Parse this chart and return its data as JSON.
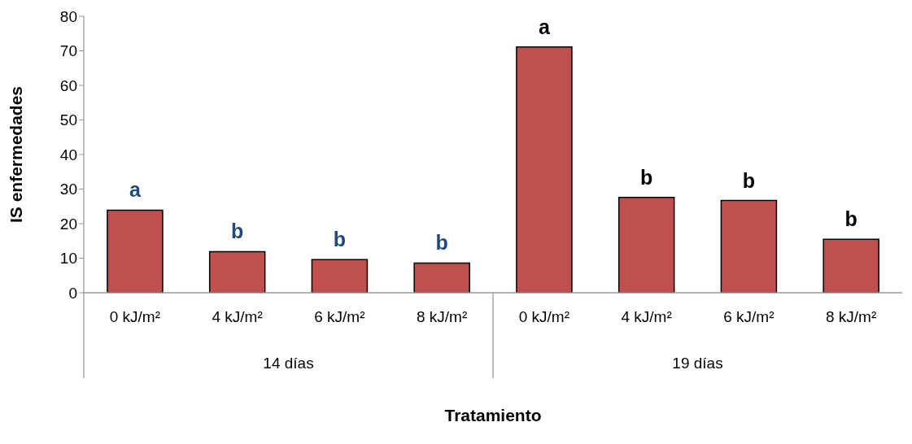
{
  "chart_data": {
    "type": "bar",
    "xlabel": "Tratamiento",
    "ylabel": "IS enfermedades",
    "categories": [
      "0 kJ/m²",
      "4 kJ/m²",
      "6 kJ/m²",
      "8 kJ/m²",
      "0 kJ/m²",
      "4 kJ/m²",
      "6 kJ/m²",
      "8 kJ/m²"
    ],
    "values": [
      23.9,
      11.9,
      9.6,
      8.6,
      71.1,
      27.6,
      26.7,
      15.5
    ],
    "value_labels": [
      "a",
      "b",
      "b",
      "b",
      "a",
      "b",
      "b",
      "b"
    ],
    "color": "#c0504d",
    "annotations": [
      "14 días",
      "19 días"
    ],
    "ylim": [
      0,
      80
    ],
    "yticks": [
      0,
      10,
      20,
      30,
      40,
      50,
      60,
      70,
      80
    ],
    "grid": false
  }
}
